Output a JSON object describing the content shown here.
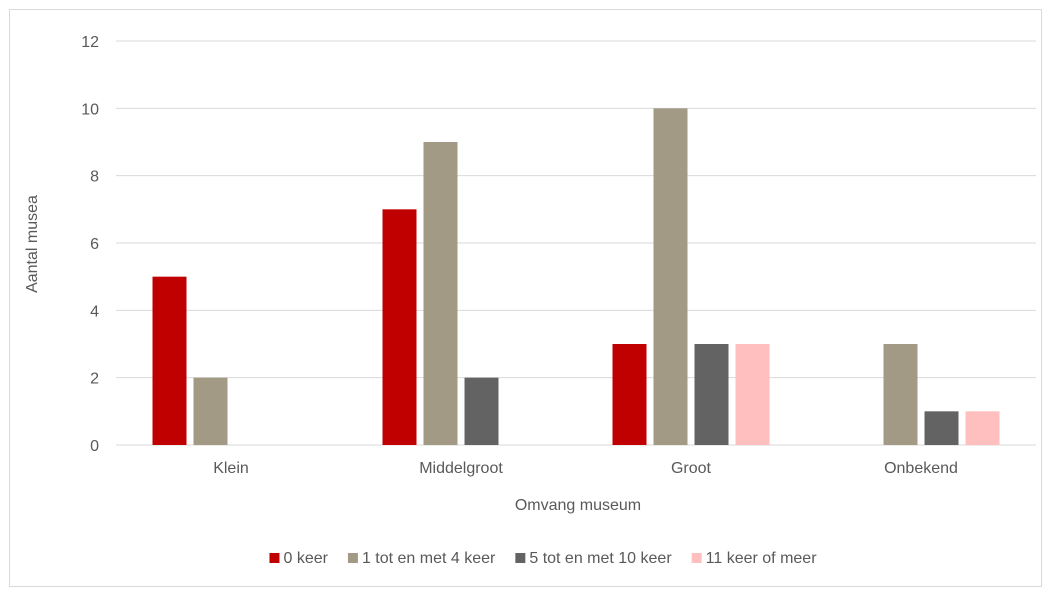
{
  "chart_data": {
    "type": "bar",
    "title": "",
    "xlabel": "Omvang museum",
    "ylabel": "Aantal musea",
    "ylim": [
      0,
      12
    ],
    "yticks": [
      "0",
      "2",
      "4",
      "6",
      "8",
      "10",
      "12"
    ],
    "grid": true,
    "legend_position": "bottom",
    "categories": [
      "Klein",
      "Middelgroot",
      "Groot",
      "Onbekend"
    ],
    "series": [
      {
        "name": "0 keer",
        "color": "#c00000",
        "values": [
          5,
          7,
          3,
          0
        ]
      },
      {
        "name": "1 tot en met 4 keer",
        "color": "#a39a86",
        "values": [
          2,
          9,
          10,
          3
        ]
      },
      {
        "name": "5 tot en met 10 keer",
        "color": "#636363",
        "values": [
          0,
          2,
          3,
          1
        ]
      },
      {
        "name": "11 keer of meer",
        "color": "#ffbfbf",
        "values": [
          0,
          0,
          3,
          1
        ]
      }
    ]
  }
}
